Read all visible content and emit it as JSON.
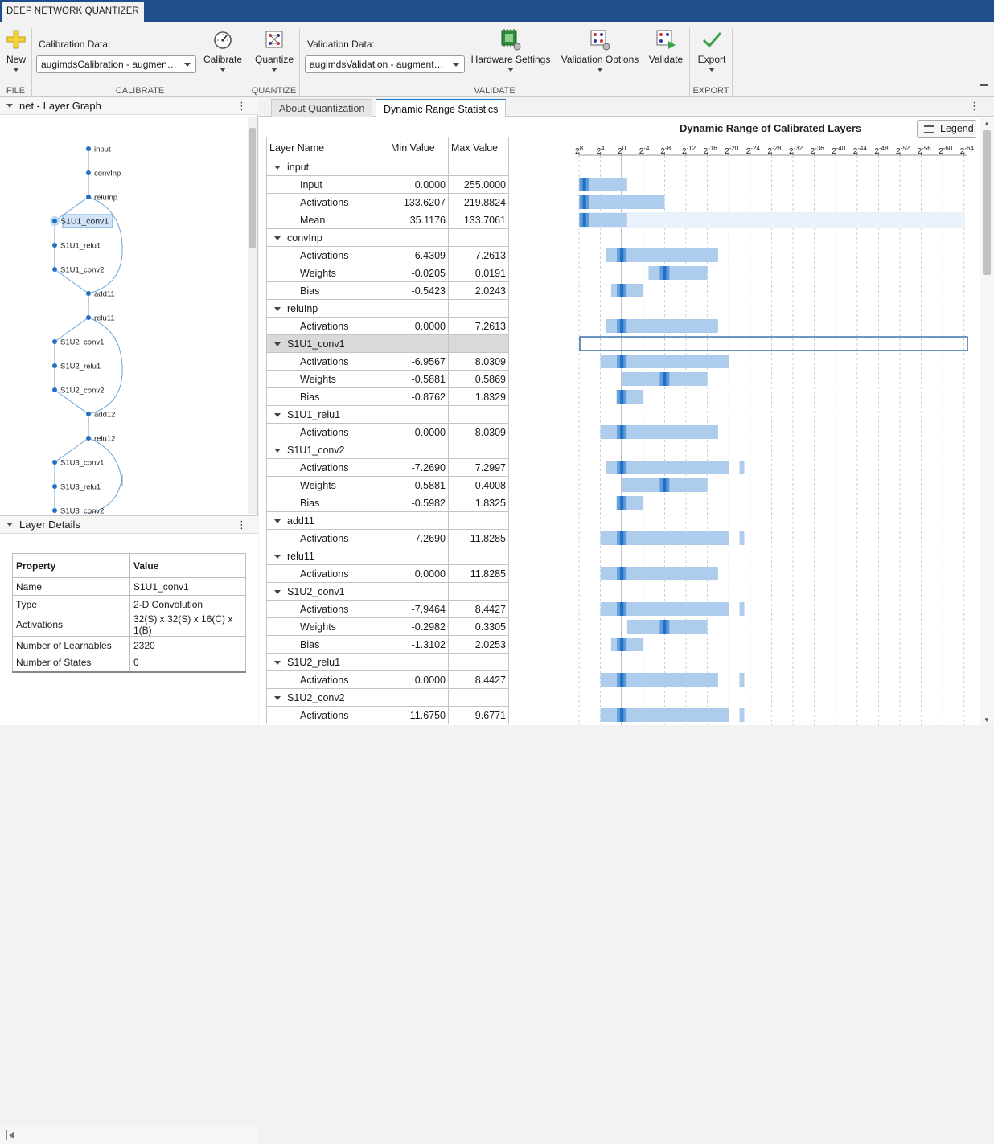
{
  "app": {
    "tab_title": "DEEP NETWORK QUANTIZER"
  },
  "toolstrip": {
    "file": {
      "section": "FILE",
      "new_label": "New"
    },
    "calibrate": {
      "section": "CALIBRATE",
      "data_label": "Calibration Data:",
      "data_value": "augimdsCalibration - augmentedImageDatastore",
      "button_label": "Calibrate"
    },
    "quantize": {
      "section": "QUANTIZE",
      "button_label": "Quantize"
    },
    "validate": {
      "section": "VALIDATE",
      "data_label": "Validation Data:",
      "data_value": "augimdsValidation - augmentedImageDatastore",
      "hardware_label": "Hardware Settings",
      "options_label": "Validation Options",
      "validate_label": "Validate"
    },
    "export": {
      "section": "EXPORT",
      "button_label": "Export"
    }
  },
  "layer_graph": {
    "title": "net - Layer Graph",
    "nodes": [
      "input",
      "convInp",
      "reluInp",
      "S1U1_conv1",
      "S1U1_relu1",
      "S1U1_conv2",
      "add11",
      "relu11",
      "S1U2_conv1",
      "S1U2_relu1",
      "S1U2_conv2",
      "add12",
      "relu12",
      "S1U3_conv1",
      "S1U3_relu1",
      "S1U3_conv2"
    ],
    "selected": "S1U1_conv1"
  },
  "layer_details": {
    "title": "Layer Details",
    "header_property": "Property",
    "header_value": "Value",
    "rows": [
      {
        "property": "Name",
        "value": "S1U1_conv1"
      },
      {
        "property": "Type",
        "value": "2-D Convolution"
      },
      {
        "property": "Activations",
        "value": "32(S) x 32(S) x 16(C) x 1(B)"
      },
      {
        "property": "Number of Learnables",
        "value": "2320"
      },
      {
        "property": "Number of States",
        "value": "0"
      }
    ]
  },
  "tabs": {
    "about": "About Quantization",
    "dynamic": "Dynamic Range Statistics"
  },
  "stats_table": {
    "headers": [
      "Layer Name",
      "Min Value",
      "Max Value"
    ],
    "groups": [
      {
        "name": "input",
        "rows": [
          {
            "name": "Input",
            "min": "0.0000",
            "max": "255.0000"
          },
          {
            "name": "Activations",
            "min": "-133.6207",
            "max": "219.8824"
          },
          {
            "name": "Mean",
            "min": "35.1176",
            "max": "133.7061"
          }
        ]
      },
      {
        "name": "convInp",
        "rows": [
          {
            "name": "Activations",
            "min": "-6.4309",
            "max": "7.2613"
          },
          {
            "name": "Weights",
            "min": "-0.0205",
            "max": "0.0191"
          },
          {
            "name": "Bias",
            "min": "-0.5423",
            "max": "2.0243"
          }
        ]
      },
      {
        "name": "reluInp",
        "rows": [
          {
            "name": "Activations",
            "min": "0.0000",
            "max": "7.2613"
          }
        ]
      },
      {
        "name": "S1U1_conv1",
        "rows": [
          {
            "name": "Activations",
            "min": "-6.9567",
            "max": "8.0309"
          },
          {
            "name": "Weights",
            "min": "-0.5881",
            "max": "0.5869"
          },
          {
            "name": "Bias",
            "min": "-0.8762",
            "max": "1.8329"
          }
        ]
      },
      {
        "name": "S1U1_relu1",
        "rows": [
          {
            "name": "Activations",
            "min": "0.0000",
            "max": "8.0309"
          }
        ]
      },
      {
        "name": "S1U1_conv2",
        "rows": [
          {
            "name": "Activations",
            "min": "-7.2690",
            "max": "7.2997"
          },
          {
            "name": "Weights",
            "min": "-0.5881",
            "max": "0.4008"
          },
          {
            "name": "Bias",
            "min": "-0.5982",
            "max": "1.8325"
          }
        ]
      },
      {
        "name": "add11",
        "rows": [
          {
            "name": "Activations",
            "min": "-7.2690",
            "max": "11.8285"
          }
        ]
      },
      {
        "name": "relu11",
        "rows": [
          {
            "name": "Activations",
            "min": "0.0000",
            "max": "11.8285"
          }
        ]
      },
      {
        "name": "S1U2_conv1",
        "rows": [
          {
            "name": "Activations",
            "min": "-7.9464",
            "max": "8.4427"
          },
          {
            "name": "Weights",
            "min": "-0.2982",
            "max": "0.3305"
          },
          {
            "name": "Bias",
            "min": "-1.3102",
            "max": "2.0253"
          }
        ]
      },
      {
        "name": "S1U2_relu1",
        "rows": [
          {
            "name": "Activations",
            "min": "0.0000",
            "max": "8.4427"
          }
        ]
      },
      {
        "name": "S1U2_conv2",
        "rows": [
          {
            "name": "Activations",
            "min": "-11.6750",
            "max": "9.6771"
          }
        ]
      }
    ]
  },
  "chart": {
    "title": "Dynamic Range of Calibrated Layers",
    "legend_label": "Legend",
    "tick_labels": [
      {
        "base": "2",
        "exp": "8"
      },
      {
        "base": "2",
        "exp": "4"
      },
      {
        "base": "2",
        "exp": "0"
      },
      {
        "base": "2",
        "exp": "-4"
      },
      {
        "base": "2",
        "exp": "-8"
      },
      {
        "base": "2",
        "exp": "-12"
      },
      {
        "base": "2",
        "exp": "-16"
      },
      {
        "base": "2",
        "exp": "-20"
      },
      {
        "base": "2",
        "exp": "-24"
      },
      {
        "base": "2",
        "exp": "-28"
      },
      {
        "base": "2",
        "exp": "-32"
      },
      {
        "base": "2",
        "exp": "-36"
      },
      {
        "base": "2",
        "exp": "-40"
      },
      {
        "base": "2",
        "exp": "-44"
      },
      {
        "base": "2",
        "exp": "-48"
      },
      {
        "base": "2",
        "exp": "-52"
      },
      {
        "base": "2",
        "exp": "-56"
      },
      {
        "base": "2",
        "exp": "-60"
      },
      {
        "base": "2",
        "exp": "-64"
      }
    ],
    "colors": {
      "dark": "#1f6fc4",
      "mid": "#5d9cd9",
      "light": "#aecdec",
      "band": "#eaf3fb",
      "select": "#2a6aa8"
    }
  }
}
